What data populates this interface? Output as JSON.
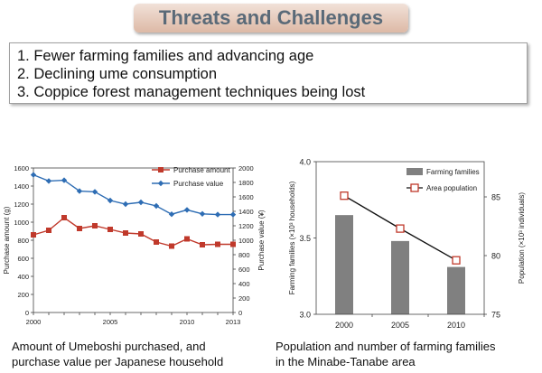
{
  "title": "Threats and Challenges",
  "items": [
    "1. Fewer farming families and advancing age",
    "2. Declining ume consumption",
    "3. Coppice forest management techniques being lost"
  ],
  "captions": {
    "left": [
      "Amount of Umeboshi purchased, and",
      "purchase value per Japanese household"
    ],
    "right": [
      "Population and number of farming families",
      "in the Minabe-Tanabe area"
    ]
  },
  "colors": {
    "amount": "#c0392b",
    "value": "#2e6db4",
    "bars": "#808080",
    "population_marker": "#c0392b"
  },
  "chart_data": [
    {
      "type": "line",
      "x": [
        2000,
        2001,
        2002,
        2003,
        2004,
        2005,
        2006,
        2007,
        2008,
        2009,
        2010,
        2011,
        2012,
        2013
      ],
      "x_tick_labels": [
        "2000",
        "2005",
        "2010",
        "2013"
      ],
      "series": [
        {
          "name": "Purchase amount",
          "axis": "left",
          "values": [
            860,
            910,
            1050,
            930,
            960,
            920,
            880,
            870,
            780,
            735,
            815,
            750,
            755,
            755
          ]
        },
        {
          "name": "Purchase value",
          "axis": "right",
          "values": [
            1905,
            1820,
            1830,
            1680,
            1670,
            1550,
            1500,
            1525,
            1475,
            1360,
            1420,
            1365,
            1355,
            1355
          ]
        }
      ],
      "ylabel_left": "Purchase amount (g)",
      "ylabel_right": "Purchase value (¥)",
      "ylim_left": [
        0,
        1600
      ],
      "ylim_right": [
        0,
        2000
      ],
      "yticks_left": [
        "0",
        "200",
        "400",
        "600",
        "800",
        "1000",
        "1200",
        "1400",
        "1600"
      ],
      "yticks_right": [
        "0",
        "200",
        "400",
        "600",
        "800",
        "1000",
        "1200",
        "1400",
        "1600",
        "1800",
        "2000"
      ],
      "legend_position": "top-right",
      "grid": false
    },
    {
      "type": "bar",
      "categories": [
        "2000",
        "2005",
        "2010"
      ],
      "series": [
        {
          "name": "Farming families",
          "type": "bar",
          "axis": "left",
          "values": [
            3.65,
            3.48,
            3.31
          ]
        },
        {
          "name": "Area population",
          "type": "line",
          "axis": "right",
          "values": [
            85.1,
            82.3,
            79.6
          ]
        }
      ],
      "ylabel_left": "Farming families (×10³ households)",
      "ylabel_right": "Population (×10³ individuals)",
      "ylim_left": [
        3.0,
        4.0
      ],
      "ylim_right": [
        75,
        88
      ],
      "yticks_left": [
        "3.0",
        "3.5",
        "4.0"
      ],
      "yticks_right": [
        "75",
        "80",
        "85"
      ],
      "legend_position": "top-right",
      "grid": false
    }
  ]
}
